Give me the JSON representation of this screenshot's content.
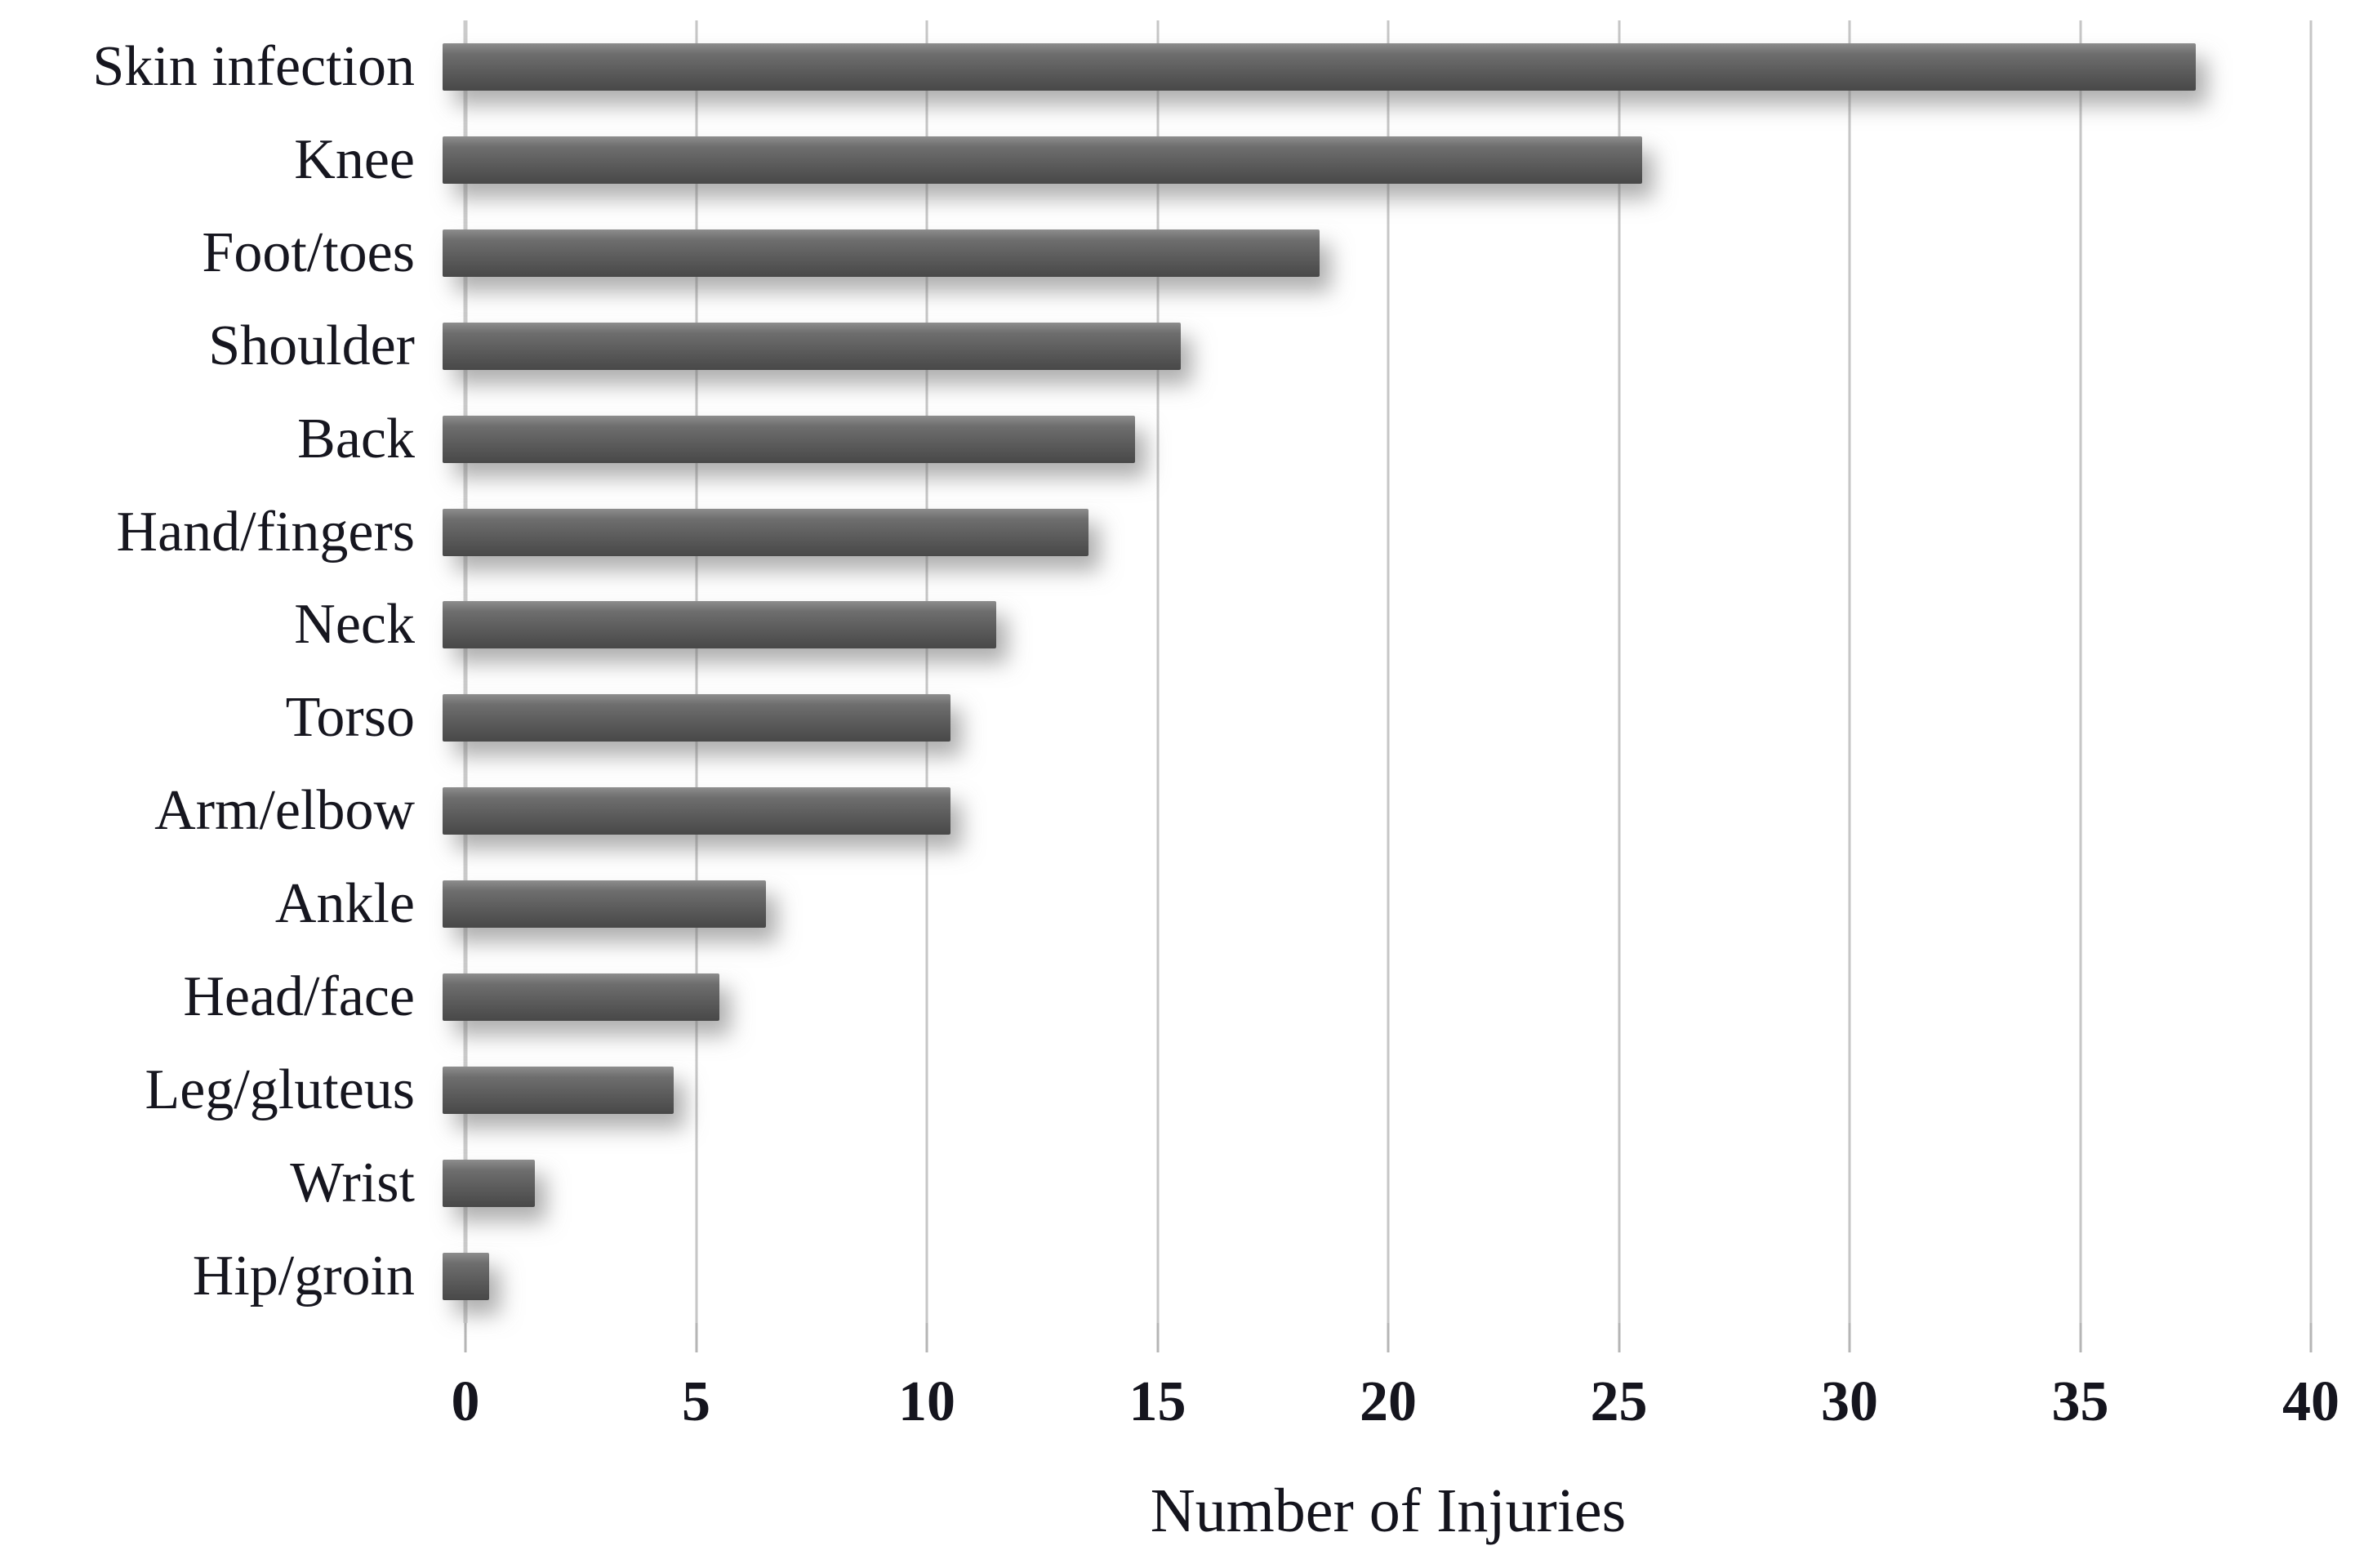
{
  "figure": {
    "background": "#ffffff",
    "bar_color_top": "#8d8d8d",
    "bar_color_bottom": "#484848",
    "gridline_color": "#c6c6c6",
    "axis_line_color": "#cbcbcb",
    "text_color": "#16161f"
  },
  "chart_data": {
    "type": "bar",
    "orientation": "horizontal",
    "title": "",
    "xlabel": "Number of Injuries",
    "ylabel": "",
    "categories": [
      "Skin infection",
      "Knee",
      "Foot/toes",
      "Shoulder",
      "Back",
      "Hand/fingers",
      "Neck",
      "Torso",
      "Arm/elbow",
      "Ankle",
      "Head/face",
      "Leg/gluteus",
      "Wrist",
      "Hip/groin"
    ],
    "values": [
      38,
      26,
      19,
      16,
      15,
      14,
      12,
      11,
      11,
      7,
      6,
      5,
      2,
      1
    ],
    "xlim": [
      0,
      40
    ],
    "xticks": [
      0,
      5,
      10,
      15,
      20,
      25,
      30,
      35,
      40
    ],
    "grid": "vertical-only",
    "legend": "none"
  }
}
